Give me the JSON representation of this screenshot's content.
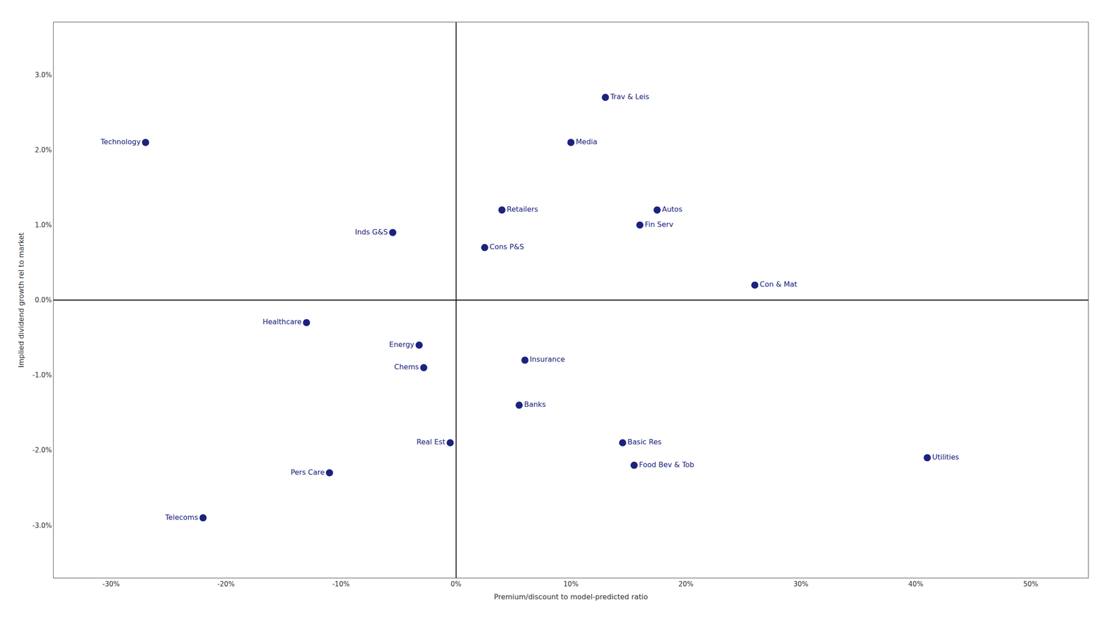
{
  "chart_data": {
    "type": "scatter",
    "xlabel": "Premium/discount to model-predicted ratio",
    "ylabel": "Implied dividend growth rel to market",
    "labels": [
      "Technology",
      "Telecoms",
      "Healthcare",
      "Inds G&S",
      "Real Est",
      "Pers Care",
      "Cons P&S",
      "Retailers",
      "Trav & Leis",
      "Media",
      "Autos",
      "Fin Serv",
      "Con & Mat",
      "Insurance",
      "Banks",
      "Food Bev & Tob",
      "Utilities",
      "Energy",
      "Chems",
      "Basic Res"
    ],
    "x": [
      -0.27,
      -0.22,
      -0.13,
      -0.055,
      -0.005,
      -0.11,
      0.025,
      0.04,
      0.13,
      0.1,
      0.175,
      0.16,
      0.26,
      0.06,
      0.055,
      0.155,
      0.41,
      -0.032,
      -0.028,
      0.145
    ],
    "values": [
      0.021,
      -0.029,
      -0.003,
      0.009,
      -0.019,
      -0.023,
      0.007,
      0.012,
      0.027,
      0.021,
      0.012,
      0.01,
      0.002,
      -0.008,
      -0.014,
      -0.022,
      -0.021,
      -0.006,
      -0.009,
      -0.019
    ],
    "color": "#1a237e",
    "xlim": [
      -0.35,
      0.55
    ],
    "ylim": [
      -0.037,
      0.037
    ],
    "xticks": [
      {
        "value": -0.3,
        "label": "-30%"
      },
      {
        "value": -0.2,
        "label": "-20%"
      },
      {
        "value": -0.1,
        "label": "-10%"
      },
      {
        "value": 0.0,
        "label": "0%"
      },
      {
        "value": 0.1,
        "label": "10%"
      },
      {
        "value": 0.2,
        "label": "20%"
      },
      {
        "value": 0.3,
        "label": "30%"
      },
      {
        "value": 0.4,
        "label": "40%"
      },
      {
        "value": 0.5,
        "label": "50%"
      }
    ],
    "yticks": [
      {
        "value": -0.03,
        "label": "-3.0%"
      },
      {
        "value": -0.02,
        "label": "-2.0%"
      },
      {
        "value": -0.01,
        "label": "-1.0%"
      },
      {
        "value": 0.0,
        "label": "0.0%"
      },
      {
        "value": 0.01,
        "label": "1.0%"
      },
      {
        "value": 0.02,
        "label": "2.0%"
      },
      {
        "value": 0.03,
        "label": "3.0%"
      }
    ],
    "grid": false
  }
}
